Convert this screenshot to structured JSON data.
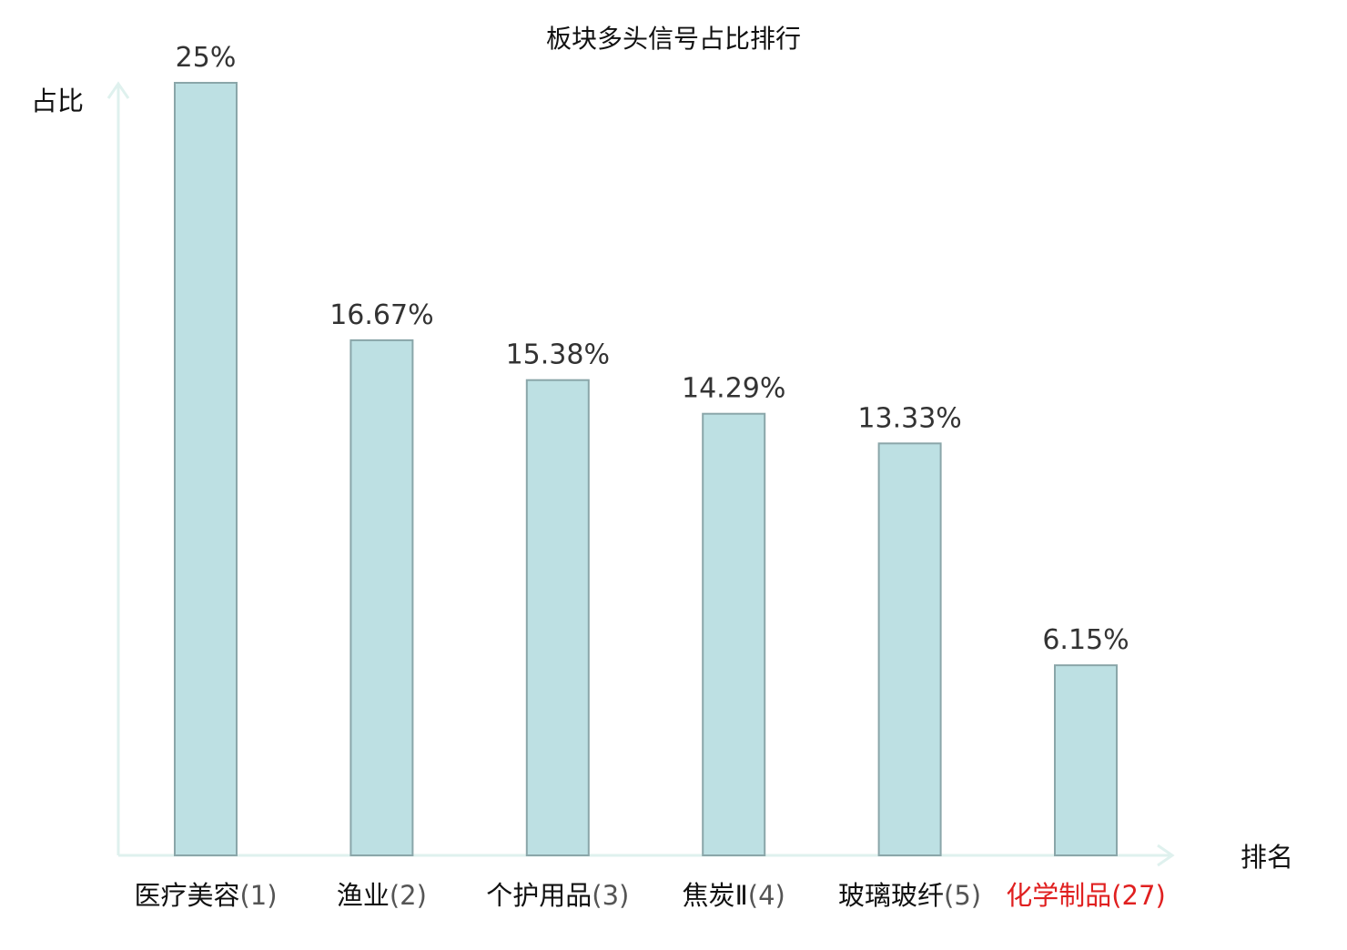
{
  "chart_data": {
    "type": "bar",
    "title": "板块多头信号占比排行",
    "xlabel": "排名",
    "ylabel": "占比",
    "ylim": [
      0,
      25
    ],
    "grid": false,
    "legend": "none",
    "categories": [
      {
        "name": "医疗美容",
        "rank": "(1)",
        "highlight": false
      },
      {
        "name": "渔业",
        "rank": "(2)",
        "highlight": false
      },
      {
        "name": "个护用品",
        "rank": "(3)",
        "highlight": false
      },
      {
        "name": "焦炭Ⅱ",
        "rank": "(4)",
        "highlight": false
      },
      {
        "name": "玻璃玻纤",
        "rank": "(5)",
        "highlight": false
      },
      {
        "name": "化学制品",
        "rank": "(27)",
        "highlight": true
      }
    ],
    "values": [
      25,
      16.67,
      15.38,
      14.29,
      13.33,
      6.15
    ],
    "value_labels": [
      "25%",
      "16.67%",
      "15.38%",
      "14.29%",
      "13.33%",
      "6.15%"
    ],
    "colors": {
      "bar_fill": "#bde0e3",
      "bar_stroke": "#8aa6a9",
      "axis": "#dff1ee",
      "label_normal": "#111111",
      "rank_normal": "#555555",
      "highlight": "#e02020"
    }
  }
}
